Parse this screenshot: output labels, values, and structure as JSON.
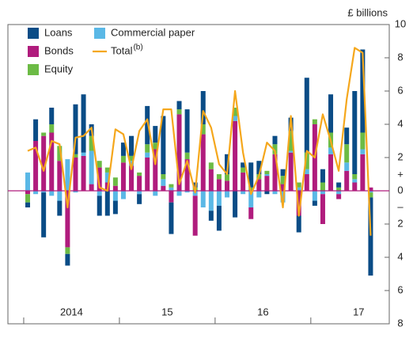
{
  "chart_data": {
    "type": "stacked-bar-line",
    "unit_label": "£ billions",
    "sign_labels": [
      "+",
      "–"
    ],
    "categories": [
      null,
      null,
      null,
      null,
      null,
      null,
      null,
      null,
      null,
      null,
      null,
      null,
      null,
      null,
      null,
      null,
      null,
      null,
      null,
      null,
      null,
      null,
      null,
      null,
      null,
      null,
      null,
      null,
      null,
      null,
      null,
      null,
      null,
      null,
      null,
      null,
      null,
      null,
      null,
      null,
      null,
      null,
      null,
      null
    ],
    "year_labels": [
      "2014",
      "15",
      "16",
      "17"
    ],
    "ylim": [
      -8,
      10
    ],
    "yticks": [
      {
        "value": -8,
        "label": "8"
      },
      {
        "value": -6,
        "label": "6"
      },
      {
        "value": -4,
        "label": "4"
      },
      {
        "value": -2,
        "label": "2"
      },
      0,
      2,
      4,
      6,
      8,
      10
    ],
    "series": [
      {
        "name": "Loans",
        "color": "#0a4c86",
        "kind": "bar",
        "values": [
          -0.3,
          1.3,
          -2.7,
          1.0,
          -0.9,
          -0.7,
          3.0,
          3.5,
          0.7,
          -1.2,
          -1.5,
          -0.8,
          0.8,
          1.2,
          -0.6,
          2.3,
          1.0,
          3.5,
          -1.9,
          0.5,
          2.6,
          0.3,
          2.0,
          -0.6,
          -1.5,
          1.2,
          -1.6,
          0.3,
          1.5,
          0.8,
          -0.2,
          0.5,
          0.4,
          0.8,
          -1.0,
          4.5,
          -0.3,
          0.8,
          2.3,
          0.3,
          1.0,
          5.0,
          5.0,
          -4.7
        ]
      },
      {
        "name": "Bonds",
        "color": "#b01c7d",
        "kind": "bar",
        "values": [
          -0.2,
          3.0,
          3.3,
          3.5,
          1.8,
          -3.4,
          2.0,
          2.1,
          0.4,
          1.4,
          0.5,
          0.3,
          1.7,
          1.5,
          0.9,
          2.0,
          2.5,
          0.3,
          -0.7,
          4.6,
          1.9,
          -2.4,
          3.4,
          1.3,
          0.7,
          0.6,
          4.2,
          1.1,
          -0.7,
          0.7,
          0.9,
          2.2,
          0.4,
          2.3,
          -1.5,
          1.0,
          4.0,
          -1.8,
          2.2,
          -0.3,
          1.2,
          0.5,
          2.2,
          0.2
        ]
      },
      {
        "name": "Equity",
        "color": "#6cbb45",
        "kind": "bar",
        "values": [
          -0.5,
          0,
          0.2,
          0.5,
          0.9,
          -0.4,
          0.2,
          0,
          0.9,
          0.4,
          0.3,
          0.5,
          0.4,
          0.3,
          0.2,
          0.5,
          0.4,
          0.3,
          0.2,
          0.3,
          0.4,
          0.2,
          0.6,
          0.4,
          0.3,
          0.4,
          0.5,
          0.3,
          0.2,
          0.3,
          0.2,
          0.6,
          0.5,
          1.2,
          0.3,
          1.0,
          0.3,
          0.5,
          0.9,
          0.2,
          1.1,
          0.3,
          1.0,
          -0.3
        ]
      },
      {
        "name": "Commercial paper",
        "color": "#5ab8e6",
        "kind": "bar",
        "values": [
          1.1,
          -0.2,
          -0.1,
          -0.3,
          -0.6,
          1.9,
          -0.1,
          0.2,
          2.0,
          -0.3,
          0.6,
          -0.6,
          -0.5,
          0.3,
          -0.2,
          0.3,
          -0.3,
          0.4,
          0.2,
          -0.3,
          -0.1,
          -0.3,
          -1.0,
          -1.2,
          -0.9,
          -0.4,
          0.3,
          -0.2,
          -1.0,
          -0.4,
          0.1,
          -0.2,
          -0.7,
          0.1,
          0.2,
          0.3,
          -0.6,
          -0.2,
          0.4,
          -0.2,
          0.5,
          0.2,
          0.3,
          -0.1
        ]
      },
      {
        "name": "Total",
        "note": "(b)",
        "color": "#f5a71c",
        "kind": "line",
        "values": [
          2.4,
          2.6,
          1.2,
          3.0,
          2.8,
          -1.0,
          3.2,
          3.3,
          3.8,
          0.2,
          0.0,
          3.7,
          3.4,
          1.3,
          3.6,
          4.3,
          1.6,
          4.9,
          4.9,
          0.4,
          1.8,
          -0.1,
          4.8,
          3.8,
          1.6,
          1.0,
          6.0,
          2.3,
          -0.2,
          0.9,
          2.9,
          2.4,
          -1.0,
          4.5,
          -1.5,
          2.4,
          2.0,
          4.6,
          3.0,
          1.2,
          5.5,
          8.6,
          8.3,
          -2.7
        ]
      }
    ]
  }
}
